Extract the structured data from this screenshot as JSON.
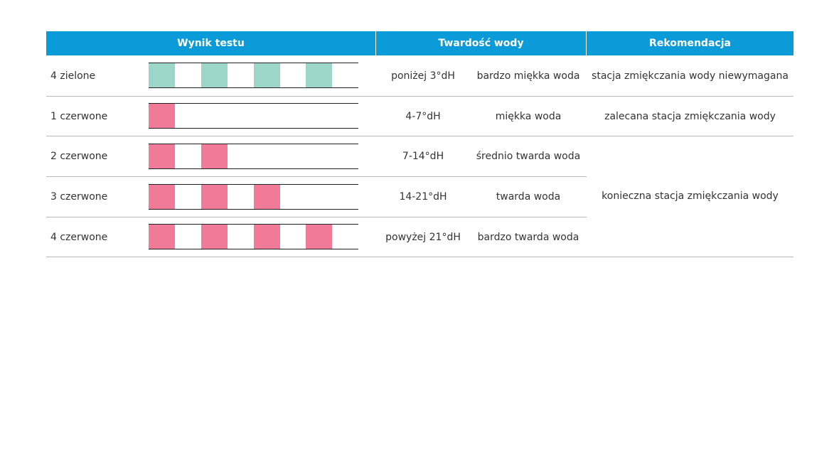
{
  "headers": {
    "test_result": "Wynik testu",
    "water_hardness": "Twardość wody",
    "recommendation": "Rekomendacja"
  },
  "colors": {
    "header_bg": "#0a9bd8",
    "green_pad": "#9bd6c8",
    "red_pad": "#f27a99"
  },
  "rows": [
    {
      "label": "4 zielone",
      "color": "green",
      "pads": 4,
      "range": "poniżej 3°dH",
      "description": "bardzo miękka woda",
      "recommendation": "stacja zmiękczania wody niewymagana"
    },
    {
      "label": "1 czerwone",
      "color": "red",
      "pads": 1,
      "range": "4-7°dH",
      "description": "miękka woda",
      "recommendation": "zalecana stacja zmiękczania wody"
    },
    {
      "label": "2 czerwone",
      "color": "red",
      "pads": 2,
      "range": "7-14°dH",
      "description": "średnio twarda woda"
    },
    {
      "label": "3 czerwone",
      "color": "red",
      "pads": 3,
      "range": "14-21°dH",
      "description": "twarda woda"
    },
    {
      "label": "4 czerwone",
      "color": "red",
      "pads": 4,
      "range": "powyżej 21°dH",
      "description": "bardzo twarda woda"
    }
  ],
  "merged_recommendation": "konieczna stacja zmiękczania wody"
}
